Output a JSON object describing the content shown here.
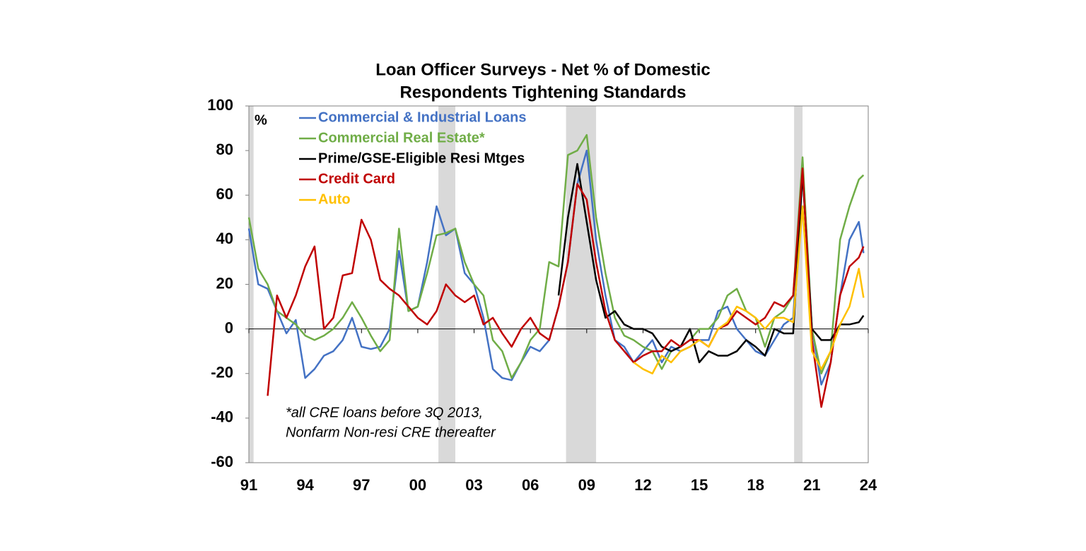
{
  "chart_data": {
    "type": "line",
    "title": [
      "Loan Officer Surveys - Net % of Domestic",
      "Respondents Tightening Standards"
    ],
    "y_label": "%",
    "annotation": [
      "*all CRE loans before 3Q 2013,",
      "Nonfarm Non-resi CRE thereafter"
    ],
    "x": [
      1991.0,
      1991.5,
      1992.0,
      1992.5,
      1993.0,
      1993.5,
      1994.0,
      1994.5,
      1995.0,
      1995.5,
      1996.0,
      1996.5,
      1997.0,
      1997.5,
      1998.0,
      1998.5,
      1999.0,
      1999.5,
      2000.0,
      2000.5,
      2001.0,
      2001.5,
      2002.0,
      2002.5,
      2003.0,
      2003.5,
      2004.0,
      2004.5,
      2005.0,
      2005.5,
      2006.0,
      2006.5,
      2007.0,
      2007.5,
      2008.0,
      2008.5,
      2009.0,
      2009.5,
      2010.0,
      2010.5,
      2011.0,
      2011.5,
      2012.0,
      2012.5,
      2013.0,
      2013.5,
      2014.0,
      2014.5,
      2015.0,
      2015.5,
      2016.0,
      2016.5,
      2017.0,
      2017.5,
      2018.0,
      2018.5,
      2019.0,
      2019.5,
      2020.0,
      2020.5,
      2021.0,
      2021.5,
      2022.0,
      2022.5,
      2023.0,
      2023.5,
      2023.75
    ],
    "series": [
      {
        "name": "Commercial & Industrial Loans",
        "color": "#4472c4",
        "values": [
          45,
          20,
          18,
          8,
          -2,
          4,
          -22,
          -18,
          -12,
          -10,
          -5,
          5,
          -8,
          -9,
          -8,
          0,
          35,
          8,
          10,
          30,
          55,
          42,
          45,
          25,
          20,
          5,
          -18,
          -22,
          -23,
          -15,
          -8,
          -10,
          -5,
          10,
          30,
          65,
          80,
          40,
          15,
          -5,
          -8,
          -15,
          -10,
          -5,
          -15,
          -8,
          -10,
          -8,
          -5,
          -5,
          8,
          10,
          0,
          -5,
          -10,
          -12,
          -5,
          2,
          5,
          70,
          0,
          -25,
          -15,
          15,
          40,
          48,
          34
        ]
      },
      {
        "name": "Commercial Real Estate*",
        "color": "#70ad47",
        "values": [
          50,
          27,
          20,
          8,
          5,
          2,
          -3,
          -5,
          -3,
          0,
          5,
          12,
          5,
          -3,
          -10,
          -5,
          45,
          8,
          10,
          25,
          42,
          43,
          45,
          30,
          20,
          15,
          -5,
          -10,
          -22,
          -15,
          -5,
          0,
          30,
          28,
          78,
          80,
          87,
          50,
          25,
          5,
          -3,
          -5,
          -8,
          -10,
          -18,
          -10,
          -8,
          -5,
          0,
          0,
          5,
          15,
          18,
          8,
          5,
          -8,
          5,
          8,
          15,
          77,
          0,
          -20,
          -10,
          40,
          55,
          67,
          69
        ]
      },
      {
        "name": "Prime/GSE-Eligible Resi Mtges",
        "color": "#000000",
        "values": [
          null,
          null,
          null,
          null,
          null,
          null,
          null,
          null,
          null,
          null,
          null,
          null,
          null,
          null,
          null,
          null,
          null,
          null,
          null,
          null,
          null,
          null,
          null,
          null,
          null,
          null,
          null,
          null,
          null,
          null,
          null,
          null,
          null,
          15,
          50,
          74,
          48,
          22,
          5,
          8,
          2,
          0,
          0,
          -2,
          -8,
          -10,
          -8,
          0,
          -15,
          -10,
          -12,
          -12,
          -10,
          -5,
          -8,
          -12,
          0,
          -2,
          -2,
          70,
          0,
          -5,
          -5,
          2,
          2,
          3,
          6
        ]
      },
      {
        "name": "Credit Card",
        "color": "#c00000",
        "values": [
          null,
          null,
          -30,
          15,
          5,
          15,
          28,
          37,
          0,
          5,
          24,
          25,
          49,
          40,
          22,
          18,
          15,
          10,
          5,
          2,
          8,
          20,
          15,
          12,
          15,
          2,
          5,
          -2,
          -8,
          0,
          5,
          -2,
          -5,
          10,
          30,
          65,
          58,
          30,
          8,
          -5,
          -10,
          -15,
          -12,
          -10,
          -10,
          -5,
          -8,
          -5,
          -5,
          -8,
          0,
          2,
          8,
          5,
          2,
          5,
          12,
          10,
          15,
          72,
          -5,
          -35,
          -15,
          15,
          28,
          32,
          37
        ]
      },
      {
        "name": "Auto",
        "color": "#ffc000",
        "values": [
          null,
          null,
          null,
          null,
          null,
          null,
          null,
          null,
          null,
          null,
          null,
          null,
          null,
          null,
          null,
          null,
          null,
          null,
          null,
          null,
          null,
          null,
          null,
          null,
          null,
          null,
          null,
          null,
          null,
          null,
          null,
          null,
          null,
          null,
          null,
          null,
          null,
          null,
          null,
          null,
          null,
          -15,
          -18,
          -20,
          -12,
          -15,
          -10,
          -8,
          -5,
          -8,
          0,
          3,
          10,
          8,
          5,
          0,
          5,
          5,
          3,
          55,
          -10,
          -18,
          -10,
          2,
          10,
          27,
          14
        ]
      }
    ],
    "recession_shading": [
      [
        1991.0,
        1991.25
      ],
      [
        2001.1,
        2002.0
      ],
      [
        2007.9,
        2009.5
      ],
      [
        2020.05,
        2020.5
      ]
    ],
    "shading_color": "#d9d9d9",
    "xlim": [
      1991,
      2024
    ],
    "xticks": [
      {
        "value": 1991,
        "label": "91"
      },
      {
        "value": 1994,
        "label": "94"
      },
      {
        "value": 1997,
        "label": "97"
      },
      {
        "value": 2000,
        "label": "00"
      },
      {
        "value": 2003,
        "label": "03"
      },
      {
        "value": 2006,
        "label": "06"
      },
      {
        "value": 2009,
        "label": "09"
      },
      {
        "value": 2012,
        "label": "12"
      },
      {
        "value": 2015,
        "label": "15"
      },
      {
        "value": 2018,
        "label": "18"
      },
      {
        "value": 2021,
        "label": "21"
      },
      {
        "value": 2024,
        "label": "24"
      }
    ],
    "ylim": [
      -60,
      100
    ],
    "yticks": [
      -60,
      -40,
      -20,
      0,
      20,
      40,
      60,
      80,
      100
    ]
  }
}
